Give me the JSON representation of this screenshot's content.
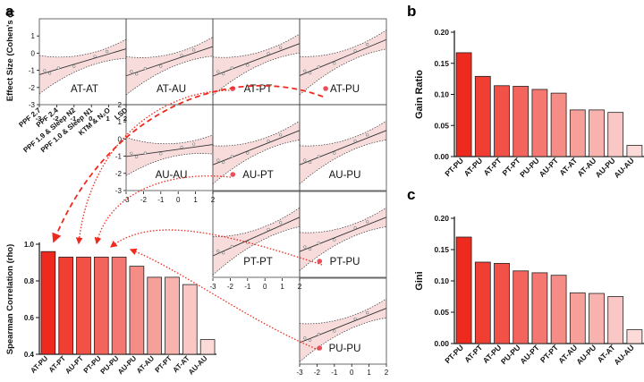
{
  "panel_a": {
    "label": "a",
    "effect_axis_label": "Effect Size (Cohen's d)",
    "effect_ticks": [
      "1",
      "0",
      "-1",
      "-2",
      "-3"
    ],
    "effect_ticks_mid": [
      "2",
      "1",
      "0",
      "-1",
      "-2",
      "-3"
    ],
    "x_ticks": [
      "-3",
      "-2",
      "-1",
      "0",
      "1",
      "2"
    ],
    "drug_labels": [
      "PPF 2.7",
      "PPF 2.4",
      "PPF 1.9 & Sleep N2",
      "PPF 1.0 & Sleep N1",
      "KTM & N₂O",
      "LSD"
    ],
    "drug_values": [
      "-3",
      "-2",
      "-1",
      "0",
      "1",
      "2"
    ],
    "cells": [
      {
        "name": "AT-AT",
        "r": 0,
        "c": 0
      },
      {
        "name": "AT-AU",
        "r": 0,
        "c": 1
      },
      {
        "name": "AT-PT",
        "r": 0,
        "c": 2
      },
      {
        "name": "AT-PU",
        "r": 0,
        "c": 3
      },
      {
        "name": "AU-AU",
        "r": 1,
        "c": 1
      },
      {
        "name": "AU-PT",
        "r": 1,
        "c": 2
      },
      {
        "name": "AU-PU",
        "r": 1,
        "c": 3
      },
      {
        "name": "PT-PT",
        "r": 2,
        "c": 2
      },
      {
        "name": "PT-PU",
        "r": 2,
        "c": 3
      },
      {
        "name": "PU-PU",
        "r": 3,
        "c": 3
      }
    ]
  },
  "panel_b_label": "b",
  "panel_c_label": "c",
  "colors": {
    "accent": "#ee2a1e",
    "marker": "#e8505b",
    "band": "#f8dcdc"
  },
  "chart_data": [
    {
      "id": "a-bar",
      "type": "bar",
      "title": "",
      "xlabel": "",
      "ylabel": "Spearman Correlation (rho)",
      "ylim": [
        0.4,
        1.0
      ],
      "yticks": [
        "0.4",
        "0.6",
        "0.8",
        "1.0"
      ],
      "categories": [
        "AT-PU",
        "AT-PT",
        "AU-PT",
        "PT-PU",
        "PU-PU",
        "AU-PU",
        "AT-AU",
        "PT-PT",
        "AT-AT",
        "AU-AU"
      ],
      "values": [
        0.96,
        0.93,
        0.93,
        0.93,
        0.93,
        0.88,
        0.82,
        0.82,
        0.78,
        0.48
      ]
    },
    {
      "id": "b",
      "type": "bar",
      "title": "",
      "xlabel": "",
      "ylabel": "Gain Ratio",
      "ylim": [
        0,
        0.2
      ],
      "yticks": [
        "0.00",
        "0.05",
        "0.10",
        "0.15",
        "0.20"
      ],
      "categories": [
        "PT-PU",
        "AT-PU",
        "AT-PT",
        "PT-PT",
        "PU-PU",
        "AU-PT",
        "AT-AT",
        "AT-AU",
        "AU-PU",
        "AU-AU"
      ],
      "values": [
        0.167,
        0.129,
        0.114,
        0.113,
        0.108,
        0.102,
        0.075,
        0.075,
        0.071,
        0.018
      ]
    },
    {
      "id": "c",
      "type": "bar",
      "title": "",
      "xlabel": "",
      "ylabel": "Gini",
      "ylim": [
        0,
        0.2
      ],
      "yticks": [
        "0.00",
        "0.05",
        "0.10",
        "0.15",
        "0.20"
      ],
      "categories": [
        "PT-PU",
        "AT-PT",
        "AT-PU",
        "PU-PU",
        "AU-PT",
        "PT-PT",
        "AT-AU",
        "AU-PU",
        "AT-AT",
        "AU-AU"
      ],
      "values": [
        0.17,
        0.13,
        0.128,
        0.116,
        0.113,
        0.109,
        0.081,
        0.08,
        0.075,
        0.022
      ]
    }
  ]
}
